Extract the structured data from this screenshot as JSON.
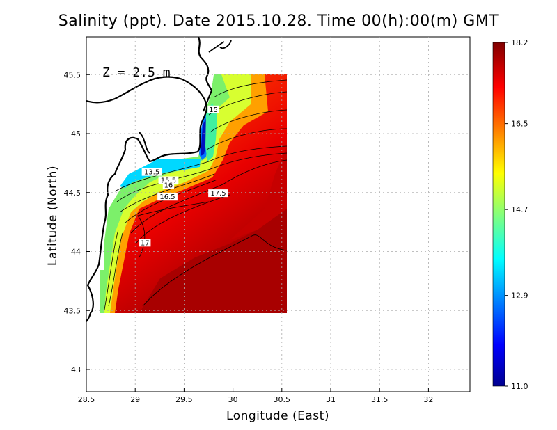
{
  "title": "Salinity (ppt). Date 2015.10.28. Time 00(h):00(m) GMT",
  "depth_label": "Z = 2.5 m",
  "xlabel": "Longitude (East)",
  "ylabel": "Latitude (North)",
  "x_ticks": [
    "28.5",
    "29",
    "29.5",
    "30",
    "30.5",
    "31",
    "31.5",
    "32"
  ],
  "y_ticks": [
    "43",
    "43.5",
    "44",
    "44.5",
    "45",
    "45.5"
  ],
  "colorbar": {
    "min": 11.0,
    "max": 18.2,
    "labels": [
      "11.0",
      "12.9",
      "14.7",
      "16.5",
      "18.2"
    ],
    "colors": [
      "#00008f",
      "#0000ff",
      "#00ffff",
      "#ffff00",
      "#ff0000",
      "#800000"
    ]
  },
  "contour_labels": [
    {
      "text": "13.5",
      "lon": 29.17,
      "lat": 44.66
    },
    {
      "text": "15",
      "lon": 29.8,
      "lat": 45.19
    },
    {
      "text": "15.5",
      "lon": 29.34,
      "lat": 44.59
    },
    {
      "text": "16",
      "lon": 29.34,
      "lat": 44.55
    },
    {
      "text": "16.5",
      "lon": 29.33,
      "lat": 44.45
    },
    {
      "text": "17.5",
      "lon": 29.85,
      "lat": 44.48
    },
    {
      "text": "17",
      "lon": 29.1,
      "lat": 44.06
    }
  ],
  "chart_data": {
    "type": "heatmap",
    "title": "Salinity (ppt). Date 2015.10.28. Time 00(h):00(m) GMT",
    "xlabel": "Longitude (East)",
    "ylabel": "Latitude (North)",
    "xlim": [
      28.5,
      32.4
    ],
    "ylim": [
      42.8,
      45.8
    ],
    "value_range": [
      11.0,
      18.2
    ],
    "domain_extent": {
      "lon": [
        28.65,
        30.55
      ],
      "lat": [
        43.5,
        45.5
      ]
    },
    "contour_levels": [
      13.5,
      15,
      15.5,
      16,
      16.5,
      17,
      17.5
    ],
    "grid": true
  }
}
